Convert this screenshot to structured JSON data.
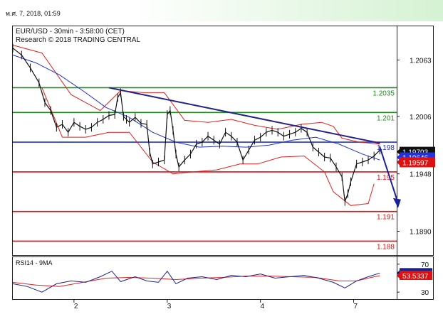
{
  "header": {
    "timestamp": "พ.ศ. 7, 2018, 01:59"
  },
  "chart_data": {
    "type": "line",
    "title": "EUR/USD - 30min - 3:58:00 (CET)",
    "subtitle": "Research © 2018 TRADING CENTRAL",
    "price_axis": {
      "ylim": [
        1.1866,
        1.2097
      ],
      "ticks": [
        {
          "value": 1.2063,
          "label": "1.2063"
        },
        {
          "value": 1.2006,
          "label": "1.2006"
        },
        {
          "value": 1.1948,
          "label": "1.1948"
        },
        {
          "value": 1.189,
          "label": "1.1890"
        }
      ]
    },
    "x_axis": {
      "range": [
        0,
        12.2
      ],
      "ticks": [
        {
          "value": 2.1,
          "label": "2"
        },
        {
          "value": 5.3,
          "label": "3"
        },
        {
          "value": 8.5,
          "label": "4"
        },
        {
          "value": 11.7,
          "label": "7"
        }
      ]
    },
    "levels": [
      {
        "value": 1.2035,
        "label": "1.2035",
        "color": "#1e8a1e"
      },
      {
        "value": 1.201,
        "label": "1.201",
        "color": "#1e8a1e"
      },
      {
        "value": 1.198,
        "label": "1.198",
        "color": "#2233cc"
      },
      {
        "value": 1.195,
        "label": "1.195",
        "color": "#dd1111"
      },
      {
        "value": 1.191,
        "label": "1.191",
        "color": "#dd1111"
      },
      {
        "value": 1.188,
        "label": "1.188",
        "color": "#dd1111"
      }
    ],
    "price_badges": [
      {
        "value": 1.19703,
        "label": "1.19703",
        "bg": "#111111",
        "fg": "#ffffff"
      },
      {
        "value": 1.19646,
        "label": "1.19646",
        "bg": "#2233dd",
        "fg": "#ffffff"
      },
      {
        "value": 1.19597,
        "label": "1.19597",
        "bg": "#dd1111",
        "fg": "#ffffff"
      }
    ],
    "trendline": {
      "start": [
        3.3,
        1.2035
      ],
      "end": [
        12.6,
        1.1979
      ],
      "color": "#222288"
    },
    "projection": {
      "start": [
        12.6,
        1.1975
      ],
      "end": [
        13.2,
        1.1915
      ],
      "color": "#1a2299"
    },
    "price_series": [
      [
        0.0,
        1.2075
      ],
      [
        0.3,
        1.2068
      ],
      [
        0.6,
        1.2055
      ],
      [
        0.9,
        1.204
      ],
      [
        1.1,
        1.202
      ],
      [
        1.3,
        1.2012
      ],
      [
        1.5,
        1.1995
      ],
      [
        1.7,
        1.1998
      ],
      [
        1.9,
        1.199
      ],
      [
        2.1,
        1.2
      ],
      [
        2.3,
        1.1996
      ],
      [
        2.5,
        1.1993
      ],
      [
        2.7,
        1.1995
      ],
      [
        2.9,
        1.2
      ],
      [
        3.1,
        1.2003
      ],
      [
        3.3,
        1.2007
      ],
      [
        3.5,
        1.2008
      ],
      [
        3.6,
        1.2025
      ],
      [
        3.7,
        1.203
      ],
      [
        3.8,
        1.2006
      ],
      [
        3.9,
        1.2003
      ],
      [
        4.0,
        1.2
      ],
      [
        4.2,
        1.2005
      ],
      [
        4.4,
        1.1999
      ],
      [
        4.6,
        1.1998
      ],
      [
        4.7,
        1.197
      ],
      [
        4.8,
        1.1958
      ],
      [
        5.0,
        1.196
      ],
      [
        5.2,
        1.1962
      ],
      [
        5.3,
        1.2008
      ],
      [
        5.4,
        1.2012
      ],
      [
        5.5,
        1.1992
      ],
      [
        5.6,
        1.1968
      ],
      [
        5.7,
        1.1955
      ],
      [
        5.9,
        1.1962
      ],
      [
        6.1,
        1.1968
      ],
      [
        6.3,
        1.1978
      ],
      [
        6.5,
        1.198
      ],
      [
        6.7,
        1.1986
      ],
      [
        6.9,
        1.1982
      ],
      [
        7.1,
        1.1978
      ],
      [
        7.3,
        1.199
      ],
      [
        7.5,
        1.1986
      ],
      [
        7.7,
        1.198
      ],
      [
        7.9,
        1.1962
      ],
      [
        8.1,
        1.1972
      ],
      [
        8.3,
        1.1982
      ],
      [
        8.5,
        1.1985
      ],
      [
        8.7,
        1.199
      ],
      [
        8.9,
        1.1992
      ],
      [
        9.1,
        1.199
      ],
      [
        9.3,
        1.1986
      ],
      [
        9.5,
        1.1988
      ],
      [
        9.7,
        1.199
      ],
      [
        9.9,
        1.1994
      ],
      [
        10.1,
        1.199
      ],
      [
        10.3,
        1.1975
      ],
      [
        10.5,
        1.197
      ],
      [
        10.7,
        1.1965
      ],
      [
        10.9,
        1.1964
      ],
      [
        11.1,
        1.1955
      ],
      [
        11.3,
        1.1945
      ],
      [
        11.4,
        1.192
      ],
      [
        11.5,
        1.1928
      ],
      [
        11.6,
        1.194
      ],
      [
        11.8,
        1.1958
      ],
      [
        12.0,
        1.196
      ],
      [
        12.2,
        1.1962
      ],
      [
        12.4,
        1.1966
      ],
      [
        12.6,
        1.1972
      ]
    ],
    "moving_average": [
      [
        0.0,
        1.2068
      ],
      [
        0.8,
        1.206
      ],
      [
        1.6,
        1.2048
      ],
      [
        2.4,
        1.2032
      ],
      [
        3.2,
        1.2015
      ],
      [
        4.0,
        1.2005
      ],
      [
        4.8,
        1.199
      ],
      [
        5.6,
        1.198
      ],
      [
        6.4,
        1.1975
      ],
      [
        7.2,
        1.1976
      ],
      [
        8.0,
        1.1975
      ],
      [
        8.8,
        1.1977
      ],
      [
        9.6,
        1.1982
      ],
      [
        10.4,
        1.1985
      ],
      [
        11.2,
        1.1978
      ],
      [
        12.0,
        1.1968
      ],
      [
        12.6,
        1.1962
      ]
    ],
    "bollinger_upper": [
      [
        0.0,
        1.2078
      ],
      [
        1.0,
        1.207
      ],
      [
        2.0,
        1.2028
      ],
      [
        3.0,
        1.2012
      ],
      [
        3.7,
        1.2032
      ],
      [
        4.5,
        1.203
      ],
      [
        5.2,
        1.203
      ],
      [
        5.9,
        1.2002
      ],
      [
        6.7,
        1.2
      ],
      [
        7.5,
        1.2003
      ],
      [
        8.3,
        1.1997
      ],
      [
        9.1,
        1.1993
      ],
      [
        9.9,
        1.1998
      ],
      [
        10.6,
        1.2
      ],
      [
        11.0,
        1.1996
      ],
      [
        11.3,
        1.1984
      ],
      [
        11.9,
        1.198
      ],
      [
        12.6,
        1.1978
      ]
    ],
    "bollinger_lower": [
      [
        1.0,
        1.2035
      ],
      [
        1.7,
        1.1985
      ],
      [
        2.5,
        1.1985
      ],
      [
        3.3,
        1.199
      ],
      [
        4.0,
        1.199
      ],
      [
        4.8,
        1.196
      ],
      [
        5.5,
        1.1948
      ],
      [
        6.2,
        1.195
      ],
      [
        7.0,
        1.1952
      ],
      [
        7.8,
        1.1958
      ],
      [
        8.4,
        1.1958
      ],
      [
        9.2,
        1.1965
      ],
      [
        10.0,
        1.1966
      ],
      [
        10.7,
        1.195
      ],
      [
        11.0,
        1.193
      ],
      [
        11.6,
        1.1916
      ],
      [
        12.2,
        1.1918
      ],
      [
        12.4,
        1.1938
      ]
    ],
    "rsi": {
      "label": "RSI14 - 9MA",
      "ylim": [
        20,
        80
      ],
      "ticks": [
        {
          "value": 70,
          "label": "70"
        },
        {
          "value": 30,
          "label": "30"
        }
      ],
      "rsi_badge": {
        "value": 57.278,
        "label": "57.278",
        "bg": "#1a2288",
        "fg": "#ffffff"
      },
      "ma_badge": {
        "value": 53.5337,
        "label": "53.5337",
        "bg": "#dd1111",
        "fg": "#ffffff"
      },
      "rsi_series": [
        [
          0.0,
          42
        ],
        [
          0.5,
          38
        ],
        [
          1.0,
          30
        ],
        [
          1.5,
          42
        ],
        [
          2.0,
          46
        ],
        [
          2.5,
          44
        ],
        [
          3.0,
          52
        ],
        [
          3.4,
          60
        ],
        [
          3.7,
          45
        ],
        [
          4.2,
          52
        ],
        [
          4.6,
          46
        ],
        [
          5.0,
          44
        ],
        [
          5.3,
          60
        ],
        [
          5.6,
          42
        ],
        [
          6.0,
          50
        ],
        [
          6.5,
          52
        ],
        [
          7.0,
          48
        ],
        [
          7.5,
          54
        ],
        [
          8.0,
          52
        ],
        [
          8.5,
          56
        ],
        [
          9.0,
          50
        ],
        [
          9.5,
          52
        ],
        [
          10.0,
          54
        ],
        [
          10.5,
          50
        ],
        [
          11.0,
          44
        ],
        [
          11.4,
          36
        ],
        [
          11.8,
          46
        ],
        [
          12.2,
          52
        ],
        [
          12.6,
          57.278
        ]
      ],
      "ma_series": [
        [
          0.0,
          44
        ],
        [
          0.8,
          40
        ],
        [
          1.6,
          38
        ],
        [
          2.4,
          44
        ],
        [
          3.2,
          50
        ],
        [
          4.0,
          51
        ],
        [
          4.8,
          50
        ],
        [
          5.6,
          48
        ],
        [
          6.4,
          50
        ],
        [
          7.2,
          51
        ],
        [
          8.0,
          53
        ],
        [
          8.8,
          53
        ],
        [
          9.6,
          52
        ],
        [
          10.4,
          51
        ],
        [
          11.2,
          46
        ],
        [
          11.8,
          46
        ],
        [
          12.3,
          51
        ],
        [
          12.6,
          53.5337
        ]
      ]
    }
  }
}
